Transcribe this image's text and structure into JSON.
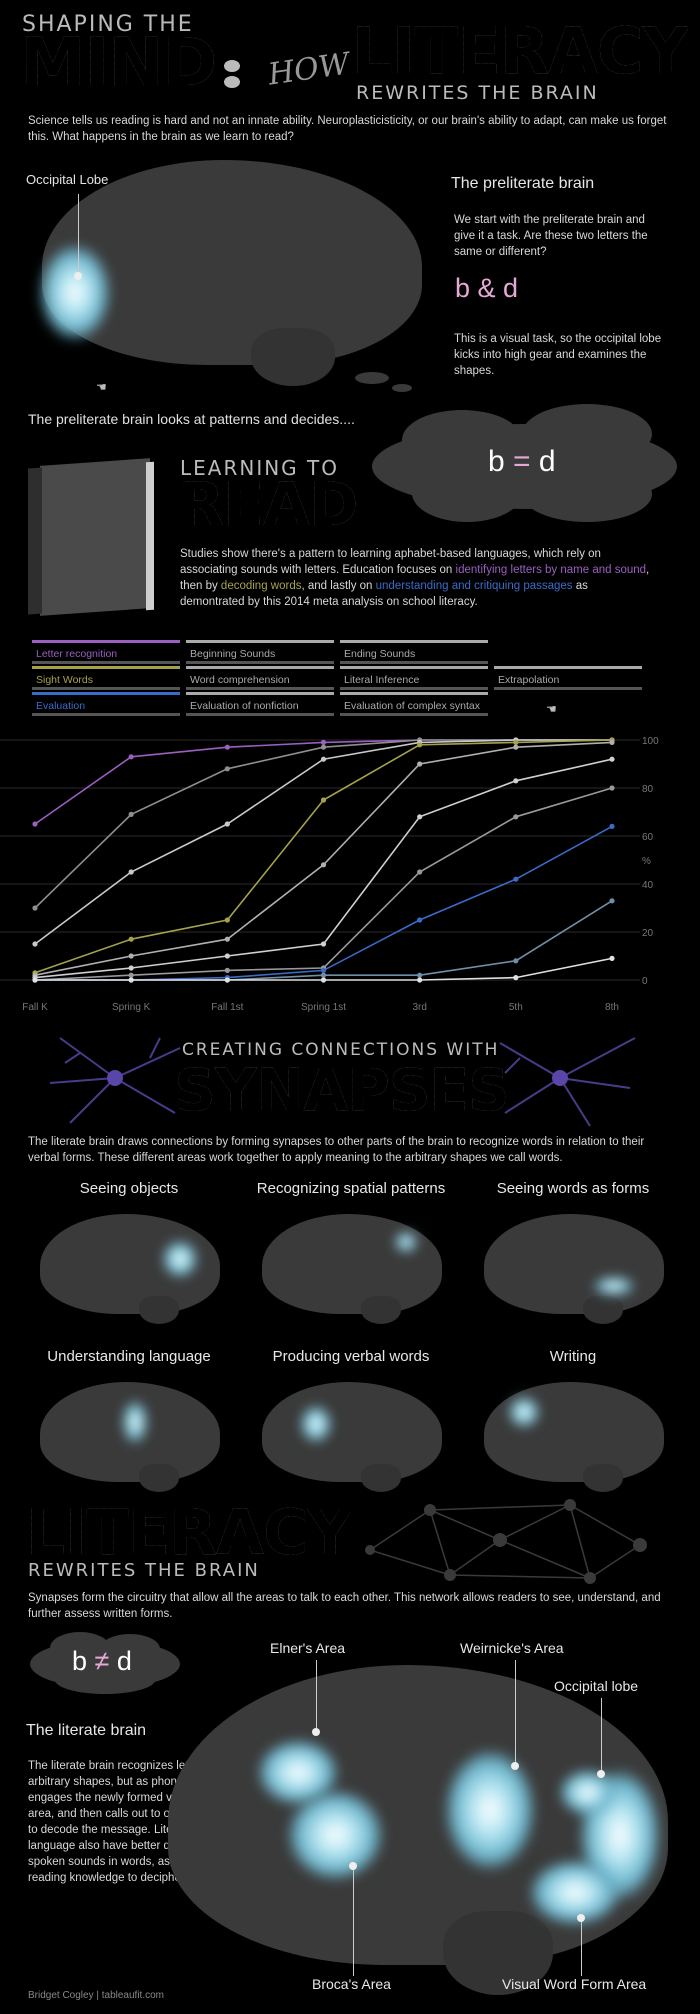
{
  "header": {
    "shaping": "SHAPING THE",
    "mind": "MIND",
    "how": "HOW",
    "literacy": "LITERACY",
    "rewrites": "REWRITES THE BRAIN"
  },
  "intro": "Science tells us reading is hard and not an innate ability.  Neuroplasticisticity, or our brain's ability to adapt, can make us forget this.  What happens in the brain as we learn to read?",
  "preliterate": {
    "occipital_label": "Occipital Lobe",
    "title": "The preliterate brain",
    "text1": "We start with the preliterate brain and give it a task.  Are these two letters the same or different?",
    "letters": "b & d",
    "text2": "This is a visual task, so the occipital lobe kicks into high gear and examines the shapes.",
    "decides": "The preliterate brain looks at patterns and decides....",
    "equation": {
      "left": "b",
      "op": "=",
      "right": "d"
    }
  },
  "learning": {
    "small": "LEARNING TO",
    "big": "READ",
    "text_a": "Studies show there's a pattern to learning aphabet-based languages, which rely on associating sounds with letters.  Education focuses on ",
    "hl1": "identifying letters by name and sound",
    "text_b": ", then by ",
    "hl2": "decoding words",
    "text_c": ", and lastly on ",
    "hl3": "understanding and critiquing passages",
    "text_d": " as demontrated by this 2014 meta analysis on school literacy."
  },
  "legend": [
    {
      "label": "Letter recognition",
      "color": "#9a5fc0"
    },
    {
      "label": "Beginning Sounds",
      "color": "#aaaaaa"
    },
    {
      "label": "Ending Sounds",
      "color": "#aaaaaa"
    },
    {
      "label": "Sight Words",
      "color": "#a5a24a"
    },
    {
      "label": "Word comprehension",
      "color": "#aaaaaa"
    },
    {
      "label": "Literal Inference",
      "color": "#aaaaaa"
    },
    {
      "label": "Extrapolation",
      "color": "#aaaaaa"
    },
    {
      "label": "Evaluation",
      "color": "#3a6bc8"
    },
    {
      "label": "Evaluation of nonfiction",
      "color": "#aaaaaa"
    },
    {
      "label": "Evaluation of complex syntax",
      "color": "#aaaaaa"
    }
  ],
  "chart_data": {
    "type": "line",
    "categories": [
      "Fall K",
      "Spring K",
      "Fall 1st",
      "Spring 1st",
      "3rd",
      "5th",
      "8th"
    ],
    "ylim": [
      0,
      100
    ],
    "ylabel": "%",
    "yticks": [
      "0",
      "20",
      "40",
      "60",
      "80",
      "100"
    ],
    "series": [
      {
        "name": "Letter recognition",
        "color": "#9a5fc0",
        "values": [
          65,
          93,
          97,
          99,
          100,
          100,
          100
        ]
      },
      {
        "name": "Beginning Sounds",
        "color": "#8f8f8f",
        "values": [
          30,
          69,
          88,
          97,
          100,
          100,
          100
        ]
      },
      {
        "name": "Ending Sounds",
        "color": "#c8c8c8",
        "values": [
          15,
          45,
          65,
          92,
          99,
          100,
          100
        ]
      },
      {
        "name": "Sight Words",
        "color": "#a5a24a",
        "values": [
          3,
          17,
          25,
          75,
          98,
          99,
          100
        ]
      },
      {
        "name": "Word comprehension",
        "color": "#b0b0b0",
        "values": [
          2,
          10,
          17,
          48,
          90,
          97,
          99
        ]
      },
      {
        "name": "Literal Inference",
        "color": "#d0d0d0",
        "values": [
          1,
          5,
          10,
          15,
          68,
          83,
          92
        ]
      },
      {
        "name": "Extrapolation",
        "color": "#999999",
        "values": [
          0,
          2,
          4,
          5,
          45,
          68,
          80
        ]
      },
      {
        "name": "Evaluation",
        "color": "#3a6bc8",
        "values": [
          0,
          0,
          1,
          4,
          25,
          42,
          64
        ]
      },
      {
        "name": "Evaluation of nonfiction",
        "color": "#6f8fa8",
        "values": [
          0,
          0,
          0,
          2,
          2,
          8,
          33
        ]
      },
      {
        "name": "Evaluation of complex syntax",
        "color": "#e0e0e0",
        "values": [
          0,
          0,
          0,
          0,
          0,
          1,
          9
        ]
      }
    ]
  },
  "synapses": {
    "small": "CREATING CONNECTIONS WITH",
    "big": "SYNAPSES",
    "text": "The literate brain draws connections  by forming synapses to other parts of the brain to recognize words in relation to their verbal forms.   These different areas work together to apply meaning to the arbitrary shapes we call words.",
    "areas": [
      "Seeing objects",
      "Recognizing spatial patterns",
      "Seeing words as forms",
      "Understanding language",
      "Producing verbal words",
      "Writing"
    ]
  },
  "literacy2": {
    "big": "LITERACY",
    "small": "REWRITES THE BRAIN",
    "text": "Synapses form the circuitry  that allow all the areas to talk to each other.  This network allows readers to see, understand, and further assess written forms."
  },
  "literate": {
    "equation": {
      "left": "b",
      "op": "≠",
      "right": "d"
    },
    "title": "The literate brain",
    "text": "The literate brain recognizes letters not as arbitrary shapes, but as phonetic markers.  It engages the newly formed visual word form area, and then calls out to other language areas to decode the message. Literate readers of a language also have better differentiation of spoken sounds in words, as they can rely on reading knowledge to decipher the word.",
    "labels": {
      "elner": "Elner's Area",
      "weirnicke": "Weirnicke's Area",
      "occipital": "Occipital lobe",
      "broca": "Broca's Area",
      "vwfa": "Visual Word Form Area"
    }
  },
  "credit": "Bridget Cogley | tableaufit.com"
}
